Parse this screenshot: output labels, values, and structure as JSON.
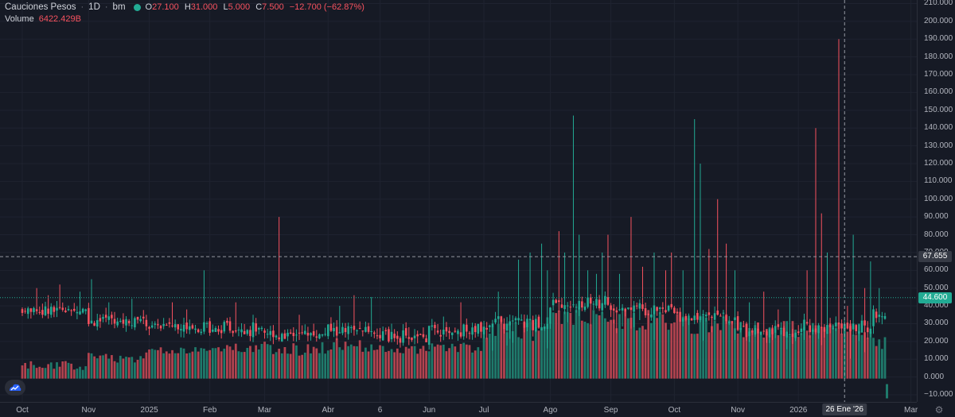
{
  "header": {
    "symbol": "Cauciones Pesos",
    "interval": "1D",
    "source": "bm",
    "ohlc": {
      "o_label": "O",
      "o": "27.100",
      "h_label": "H",
      "h": "31.000",
      "l_label": "L",
      "l": "5.000",
      "c_label": "C",
      "c": "7.500",
      "change": "−12.700 (−62.87%)"
    },
    "volume_label": "Volume",
    "volume_value": "6422.429B",
    "eye_icon": "eye-icon",
    "close_icon": "close-icon"
  },
  "price_axis": {
    "labels": [
      "210.000",
      "200.000",
      "190.000",
      "180.000",
      "170.000",
      "160.000",
      "150.000",
      "140.000",
      "130.000",
      "120.000",
      "110.000",
      "100.000",
      "90.000",
      "80.000",
      "70.000",
      "60.000",
      "50.000",
      "40.000",
      "30.000",
      "20.000",
      "10.000",
      "0.000",
      "−10.000"
    ],
    "crosshair_price": "67.655",
    "last_price": "44.600"
  },
  "time_axis": {
    "labels": [
      "Oct",
      "Nov",
      "2025",
      "Feb",
      "Mar",
      "Abr",
      "6",
      "Jun",
      "Jul",
      "Ago",
      "Sep",
      "Oct",
      "Nov",
      "2026",
      "Mar"
    ],
    "crosshair_date": "26 Ene '26"
  },
  "colors": {
    "up": "#22ab94",
    "down": "#f7525f",
    "vol_up": "#1f7a6b",
    "vol_down": "#b2434f",
    "background": "#161a25",
    "grid": "#1f2330",
    "crosshair": "#9598a1",
    "last_line": "#22ab94"
  },
  "chart_data": {
    "type": "candlestick",
    "ylim": [
      -14,
      212
    ],
    "last_price": 44.6,
    "crosshair_price": 67.655,
    "time_axis_anchors": [
      {
        "label": "Oct",
        "bar": 0
      },
      {
        "label": "Nov",
        "bar": 23
      },
      {
        "label": "2025",
        "bar": 44
      },
      {
        "label": "Feb",
        "bar": 65
      },
      {
        "label": "Mar",
        "bar": 84
      },
      {
        "label": "Abr",
        "bar": 106
      },
      {
        "label": "6",
        "bar": 124
      },
      {
        "label": "Jun",
        "bar": 141
      },
      {
        "label": "Jul",
        "bar": 160
      },
      {
        "label": "Ago",
        "bar": 183
      },
      {
        "label": "Sep",
        "bar": 204
      },
      {
        "label": "Oct",
        "bar": 226
      },
      {
        "label": "Nov",
        "bar": 248
      },
      {
        "label": "2026",
        "bar": 269
      },
      {
        "label": "Mar",
        "bar": 308
      }
    ],
    "segments": [
      {
        "from": 0,
        "to": 22,
        "base": 38,
        "hi_spike": [
          [
            5,
            50
          ],
          [
            9,
            46
          ],
          [
            13,
            52
          ],
          [
            20,
            48
          ]
        ],
        "vol": [
          4,
          9
        ]
      },
      {
        "from": 23,
        "to": 43,
        "base": 32,
        "hi_spike": [
          [
            24,
            55
          ],
          [
            30,
            42
          ],
          [
            38,
            44
          ]
        ],
        "vol": [
          8,
          14
        ]
      },
      {
        "from": 44,
        "to": 64,
        "base": 29,
        "hi_spike": [
          [
            52,
            42
          ],
          [
            57,
            38
          ],
          [
            63,
            60
          ]
        ],
        "vol": [
          13,
          17
        ]
      },
      {
        "from": 65,
        "to": 83,
        "base": 27,
        "hi_spike": [
          [
            74,
            42
          ],
          [
            80,
            35
          ]
        ],
        "vol": [
          14,
          19
        ]
      },
      {
        "from": 84,
        "to": 105,
        "base": 24,
        "hi_spike": [
          [
            89,
            90
          ],
          [
            96,
            35
          ],
          [
            101,
            30
          ]
        ],
        "vol": [
          12,
          20
        ]
      },
      {
        "from": 106,
        "to": 123,
        "base": 26,
        "hi_spike": [
          [
            110,
            40
          ],
          [
            115,
            46
          ],
          [
            121,
            45
          ]
        ],
        "vol": [
          14,
          22
        ]
      },
      {
        "from": 124,
        "to": 140,
        "base": 23,
        "hi_spike": [
          [
            128,
            30
          ],
          [
            134,
            28
          ]
        ],
        "vol": [
          13,
          18
        ]
      },
      {
        "from": 141,
        "to": 159,
        "base": 26,
        "hi_spike": [
          [
            146,
            34
          ],
          [
            152,
            42
          ],
          [
            158,
            30
          ]
        ],
        "vol": [
          13,
          20
        ]
      },
      {
        "from": 160,
        "to": 182,
        "base": 30,
        "hi_spike": [
          [
            165,
            48
          ],
          [
            172,
            66
          ],
          [
            176,
            70
          ],
          [
            180,
            75
          ],
          [
            182,
            60
          ]
        ],
        "vol": [
          20,
          34
        ]
      },
      {
        "from": 183,
        "to": 203,
        "base": 42,
        "hi_spike": [
          [
            186,
            82
          ],
          [
            188,
            70
          ],
          [
            191,
            147
          ],
          [
            193,
            80
          ],
          [
            196,
            60
          ],
          [
            199,
            58
          ],
          [
            201,
            70
          ],
          [
            203,
            80
          ]
        ],
        "vol": [
          28,
          40
        ]
      },
      {
        "from": 204,
        "to": 225,
        "base": 38,
        "hi_spike": [
          [
            207,
            58
          ],
          [
            211,
            90
          ],
          [
            215,
            62
          ],
          [
            219,
            70
          ],
          [
            223,
            60
          ],
          [
            225,
            70
          ]
        ],
        "vol": [
          26,
          38
        ]
      },
      {
        "from": 226,
        "to": 247,
        "base": 34,
        "hi_spike": [
          [
            229,
            60
          ],
          [
            233,
            145
          ],
          [
            235,
            120
          ],
          [
            238,
            72
          ],
          [
            241,
            100
          ],
          [
            244,
            75
          ],
          [
            247,
            60
          ]
        ],
        "vol": [
          24,
          36
        ]
      },
      {
        "from": 248,
        "to": 268,
        "base": 26,
        "hi_spike": [
          [
            252,
            42
          ],
          [
            257,
            48
          ],
          [
            262,
            38
          ],
          [
            266,
            45
          ]
        ],
        "vol": [
          22,
          32
        ]
      },
      {
        "from": 269,
        "to": 294,
        "base": 28,
        "hi_spike": [
          [
            272,
            60
          ],
          [
            275,
            140
          ],
          [
            277,
            92
          ],
          [
            279,
            70
          ],
          [
            283,
            190
          ],
          [
            286,
            40
          ],
          [
            288,
            80
          ],
          [
            292,
            50
          ],
          [
            294,
            65
          ]
        ],
        "vol": [
          22,
          32
        ]
      },
      {
        "from": 295,
        "to": 299,
        "base": 35,
        "hi_spike": [
          [
            297,
            50
          ]
        ],
        "vol": [
          14,
          24
        ]
      }
    ],
    "n_bars": 300
  }
}
